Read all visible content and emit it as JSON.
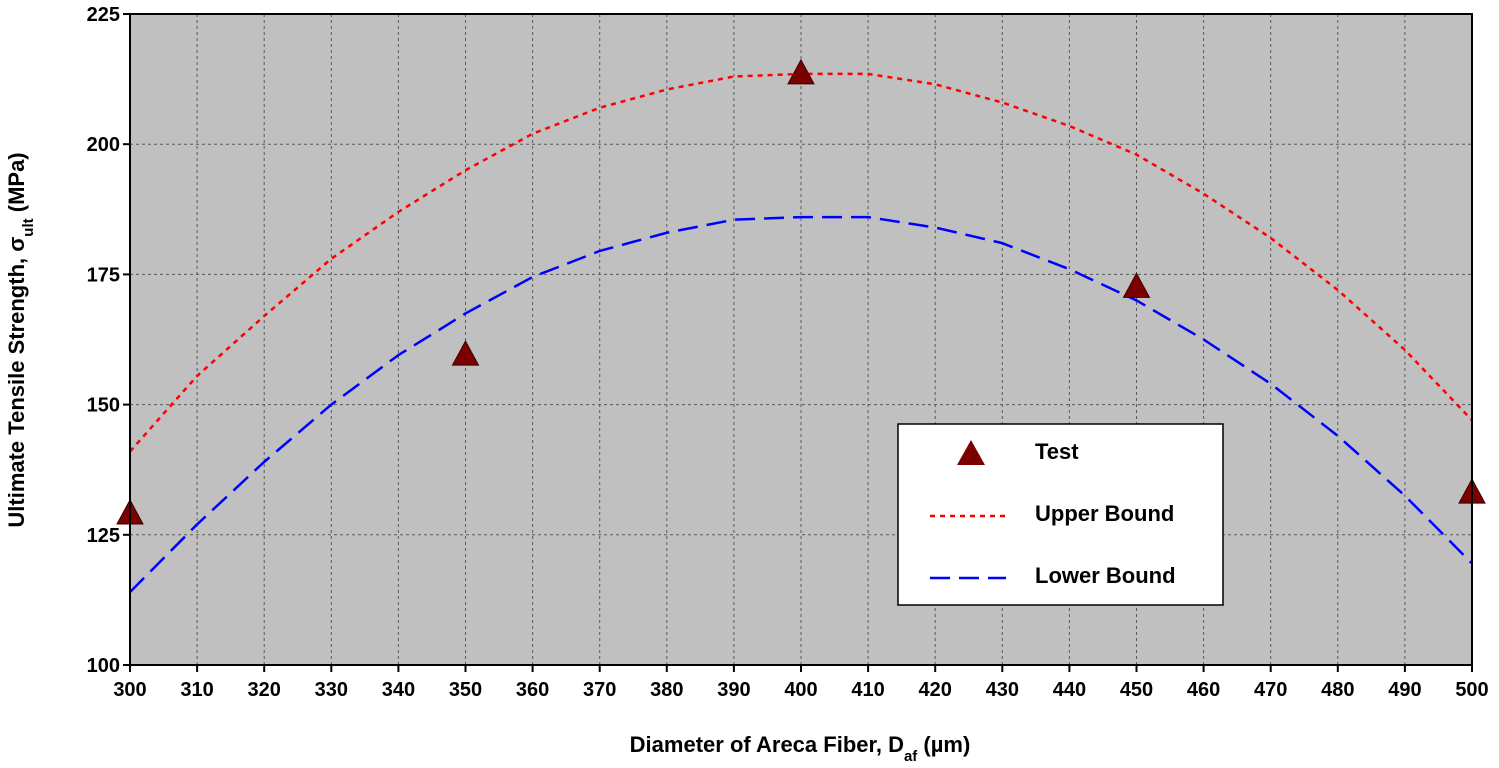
{
  "chart_data": {
    "type": "scatter",
    "xlabel": {
      "main": "Diameter of Areca Fiber, D",
      "sub": "af",
      "unit": " (µm)"
    },
    "ylabel": {
      "main": "Ultimate Tensile Strength, σ",
      "sub": "ult",
      "unit": " (MPa)"
    },
    "xlim": [
      300,
      500
    ],
    "ylim": [
      100,
      225
    ],
    "x_ticks": [
      300,
      310,
      320,
      330,
      340,
      350,
      360,
      370,
      380,
      390,
      400,
      410,
      420,
      430,
      440,
      450,
      460,
      470,
      480,
      490,
      500
    ],
    "y_ticks": [
      100,
      125,
      150,
      175,
      200,
      225
    ],
    "grid": true,
    "legend_position": "inside-right",
    "series": [
      {
        "name": "Test",
        "kind": "markers",
        "marker": "triangle",
        "color": "#7b0000",
        "x": [
          300,
          350,
          400,
          450,
          500
        ],
        "y": [
          129,
          159.5,
          213.5,
          172.5,
          133
        ]
      },
      {
        "name": "Upper Bound",
        "kind": "line",
        "style": "dotted",
        "color": "#ff0000",
        "x": [
          300,
          310,
          320,
          330,
          340,
          350,
          360,
          370,
          380,
          390,
          400,
          410,
          420,
          430,
          440,
          450,
          460,
          470,
          480,
          490,
          500
        ],
        "y": [
          141,
          155.5,
          167,
          178,
          187,
          195,
          202,
          207,
          210.5,
          213,
          213.5,
          213.5,
          211.5,
          208,
          203.5,
          198,
          190.5,
          182,
          172,
          160.5,
          147
        ]
      },
      {
        "name": "Lower Bound",
        "kind": "line",
        "style": "dashed",
        "color": "#0000ff",
        "x": [
          300,
          310,
          320,
          330,
          340,
          350,
          360,
          370,
          380,
          390,
          400,
          410,
          420,
          430,
          440,
          450,
          460,
          470,
          480,
          490,
          500
        ],
        "y": [
          114,
          127,
          139,
          150,
          159.5,
          167.5,
          174.5,
          179.5,
          183,
          185.5,
          186,
          186,
          184,
          181,
          176,
          170,
          162.5,
          154,
          144,
          132.5,
          119.5
        ]
      }
    ]
  },
  "colors": {
    "plot_background": "#c0c0c0",
    "grid": "#5a5a5a",
    "legend_background": "#ffffff"
  }
}
